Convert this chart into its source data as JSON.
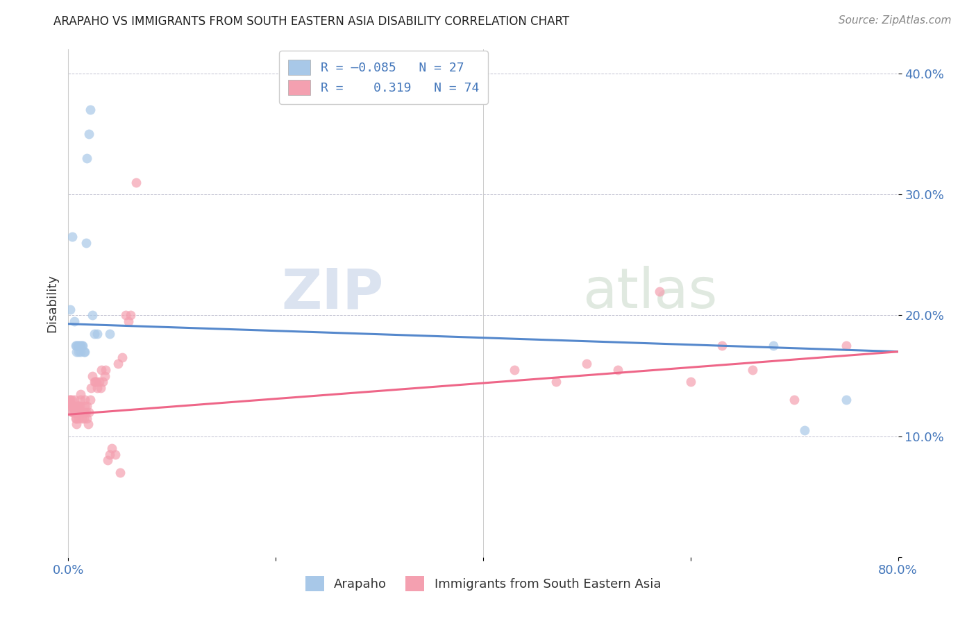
{
  "title": "ARAPAHO VS IMMIGRANTS FROM SOUTH EASTERN ASIA DISABILITY CORRELATION CHART",
  "source": "Source: ZipAtlas.com",
  "ylabel": "Disability",
  "xlim": [
    0.0,
    0.8
  ],
  "ylim": [
    0.0,
    0.42
  ],
  "watermark_zip": "ZIP",
  "watermark_atlas": "atlas",
  "blue_color": "#A8C8E8",
  "pink_color": "#F4A0B0",
  "line_blue": "#5588CC",
  "line_pink": "#EE6688",
  "arapaho_x": [
    0.002,
    0.004,
    0.006,
    0.007,
    0.008,
    0.008,
    0.009,
    0.01,
    0.01,
    0.011,
    0.012,
    0.012,
    0.013,
    0.014,
    0.015,
    0.016,
    0.017,
    0.018,
    0.02,
    0.021,
    0.023,
    0.025,
    0.028,
    0.04,
    0.68,
    0.71,
    0.75
  ],
  "arapaho_y": [
    0.205,
    0.265,
    0.195,
    0.175,
    0.17,
    0.175,
    0.175,
    0.175,
    0.17,
    0.175,
    0.17,
    0.175,
    0.175,
    0.175,
    0.17,
    0.17,
    0.26,
    0.33,
    0.35,
    0.37,
    0.2,
    0.185,
    0.185,
    0.185,
    0.175,
    0.105,
    0.13
  ],
  "immigrants_x": [
    0.001,
    0.002,
    0.002,
    0.003,
    0.003,
    0.004,
    0.004,
    0.005,
    0.005,
    0.006,
    0.006,
    0.006,
    0.007,
    0.007,
    0.007,
    0.008,
    0.008,
    0.008,
    0.009,
    0.009,
    0.009,
    0.01,
    0.01,
    0.01,
    0.011,
    0.011,
    0.012,
    0.012,
    0.013,
    0.013,
    0.014,
    0.015,
    0.015,
    0.016,
    0.016,
    0.017,
    0.018,
    0.018,
    0.019,
    0.02,
    0.021,
    0.022,
    0.023,
    0.025,
    0.026,
    0.027,
    0.028,
    0.03,
    0.031,
    0.032,
    0.033,
    0.035,
    0.036,
    0.038,
    0.04,
    0.042,
    0.045,
    0.048,
    0.05,
    0.052,
    0.055,
    0.058,
    0.06,
    0.065,
    0.43,
    0.47,
    0.5,
    0.53,
    0.57,
    0.6,
    0.63,
    0.66,
    0.7,
    0.75
  ],
  "immigrants_y": [
    0.13,
    0.125,
    0.13,
    0.125,
    0.13,
    0.12,
    0.125,
    0.12,
    0.125,
    0.12,
    0.125,
    0.13,
    0.115,
    0.12,
    0.125,
    0.11,
    0.115,
    0.12,
    0.12,
    0.125,
    0.125,
    0.115,
    0.12,
    0.125,
    0.12,
    0.125,
    0.13,
    0.135,
    0.115,
    0.12,
    0.12,
    0.115,
    0.12,
    0.125,
    0.13,
    0.12,
    0.115,
    0.125,
    0.11,
    0.12,
    0.13,
    0.14,
    0.15,
    0.145,
    0.145,
    0.145,
    0.14,
    0.145,
    0.14,
    0.155,
    0.145,
    0.15,
    0.155,
    0.08,
    0.085,
    0.09,
    0.085,
    0.16,
    0.07,
    0.165,
    0.2,
    0.195,
    0.2,
    0.31,
    0.155,
    0.145,
    0.16,
    0.155,
    0.22,
    0.145,
    0.175,
    0.155,
    0.13,
    0.175
  ],
  "blue_line_x0": 0.0,
  "blue_line_y0": 0.193,
  "blue_line_x1": 0.8,
  "blue_line_y1": 0.17,
  "pink_line_x0": 0.0,
  "pink_line_y0": 0.118,
  "pink_line_x1": 0.8,
  "pink_line_y1": 0.17
}
